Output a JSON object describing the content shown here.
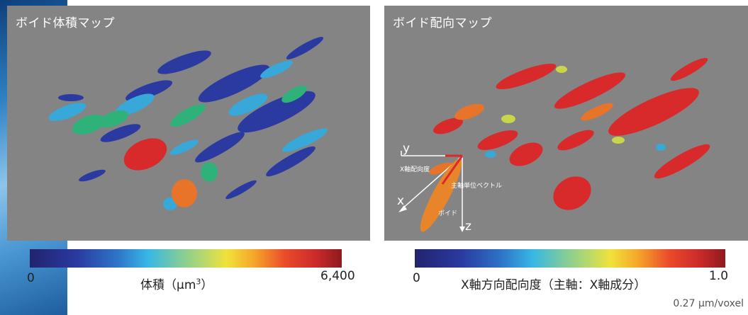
{
  "left_panel": {
    "title": "ボイド体積マップ",
    "colorbar": {
      "min": "0",
      "max": "6,400",
      "label_main": "体積（μm",
      "label_sup": "3",
      "label_close": "）"
    }
  },
  "right_panel": {
    "title": "ボイド配向マップ",
    "colorbar": {
      "min": "0",
      "max": "1.0",
      "label": "X軸方向配向度（主軸：X軸成分）"
    },
    "diagram": {
      "axis_y": "y",
      "axis_x": "x",
      "axis_z": "z",
      "x_orientation_label": "X軸配向度",
      "principal_vector_label": "主軸単位ベクトル",
      "void_label": "ボイド"
    }
  },
  "footer": {
    "scale": "0.27 μm/voxel"
  },
  "colors": {
    "panel_bg": "#848484",
    "void_red": "#d82a2a",
    "void_orange": "#e8742a",
    "void_blue": "#2a3aa0"
  }
}
